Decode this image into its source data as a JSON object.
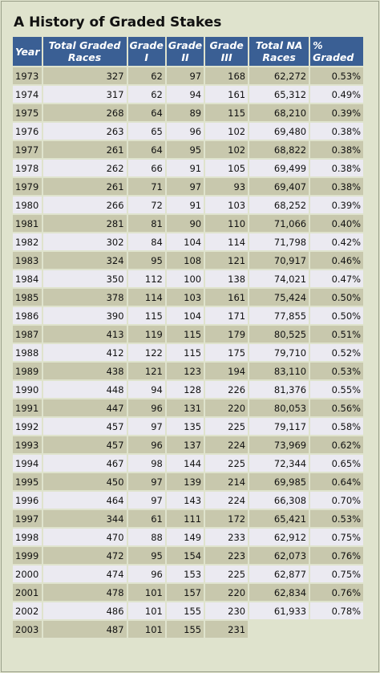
{
  "title": "A History of Graded Stakes",
  "headers": [
    "Year",
    "Total Graded Races",
    "Grade I",
    "Grade II",
    "Grade III",
    "Total NA Races",
    "% Graded"
  ],
  "rows": [
    [
      "1973",
      "327",
      "62",
      "97",
      "168",
      "62,272",
      "0.53%"
    ],
    [
      "1974",
      "317",
      "62",
      "94",
      "161",
      "65,312",
      "0.49%"
    ],
    [
      "1975",
      "268",
      "64",
      "89",
      "115",
      "68,210",
      "0.39%"
    ],
    [
      "1976",
      "263",
      "65",
      "96",
      "102",
      "69,480",
      "0.38%"
    ],
    [
      "1977",
      "261",
      "64",
      "95",
      "102",
      "68,822",
      "0.38%"
    ],
    [
      "1978",
      "262",
      "66",
      "91",
      "105",
      "69,499",
      "0.38%"
    ],
    [
      "1979",
      "261",
      "71",
      "97",
      "93",
      "69,407",
      "0.38%"
    ],
    [
      "1980",
      "266",
      "72",
      "91",
      "103",
      "68,252",
      "0.39%"
    ],
    [
      "1981",
      "281",
      "81",
      "90",
      "110",
      "71,066",
      "0.40%"
    ],
    [
      "1982",
      "302",
      "84",
      "104",
      "114",
      "71,798",
      "0.42%"
    ],
    [
      "1983",
      "324",
      "95",
      "108",
      "121",
      "70,917",
      "0.46%"
    ],
    [
      "1984",
      "350",
      "112",
      "100",
      "138",
      "74,021",
      "0.47%"
    ],
    [
      "1985",
      "378",
      "114",
      "103",
      "161",
      "75,424",
      "0.50%"
    ],
    [
      "1986",
      "390",
      "115",
      "104",
      "171",
      "77,855",
      "0.50%"
    ],
    [
      "1987",
      "413",
      "119",
      "115",
      "179",
      "80,525",
      "0.51%"
    ],
    [
      "1988",
      "412",
      "122",
      "115",
      "175",
      "79,710",
      "0.52%"
    ],
    [
      "1989",
      "438",
      "121",
      "123",
      "194",
      "83,110",
      "0.53%"
    ],
    [
      "1990",
      "448",
      "94",
      "128",
      "226",
      "81,376",
      "0.55%"
    ],
    [
      "1991",
      "447",
      "96",
      "131",
      "220",
      "80,053",
      "0.56%"
    ],
    [
      "1992",
      "457",
      "97",
      "135",
      "225",
      "79,117",
      "0.58%"
    ],
    [
      "1993",
      "457",
      "96",
      "137",
      "224",
      "73,969",
      "0.62%"
    ],
    [
      "1994",
      "467",
      "98",
      "144",
      "225",
      "72,344",
      "0.65%"
    ],
    [
      "1995",
      "450",
      "97",
      "139",
      "214",
      "69,985",
      "0.64%"
    ],
    [
      "1996",
      "464",
      "97",
      "143",
      "224",
      "66,308",
      "0.70%"
    ],
    [
      "1997",
      "344",
      "61",
      "111",
      "172",
      "65,421",
      "0.53%"
    ],
    [
      "1998",
      "470",
      "88",
      "149",
      "233",
      "62,912",
      "0.75%"
    ],
    [
      "1999",
      "472",
      "95",
      "154",
      "223",
      "62,073",
      "0.76%"
    ],
    [
      "2000",
      "474",
      "96",
      "153",
      "225",
      "62,877",
      "0.75%"
    ],
    [
      "2001",
      "478",
      "101",
      "157",
      "220",
      "62,834",
      "0.76%"
    ],
    [
      "2002",
      "486",
      "101",
      "155",
      "230",
      "61,933",
      "0.78%"
    ],
    [
      "2003",
      "487",
      "101",
      "155",
      "231",
      "",
      ""
    ]
  ]
}
